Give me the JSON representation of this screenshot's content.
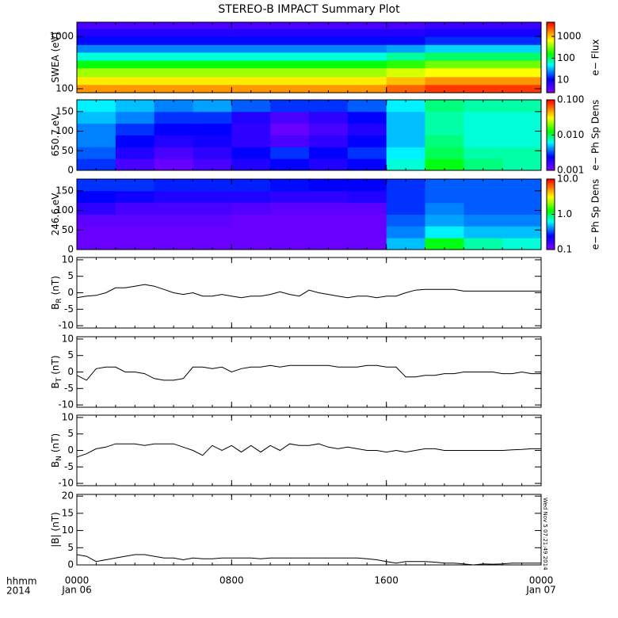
{
  "title": "STEREO-B IMPACT Summary Plot",
  "x_axis_labels": [
    "hhmm",
    "2014"
  ],
  "timestamp": "Wed Nov 5 07:21:49 2014",
  "chart_data": [
    {
      "type": "heatmap",
      "ylabel": "SWEA (eV)",
      "colorbar_label": "e− Flux",
      "colormap": "rainbow",
      "xlim": [
        0,
        24
      ],
      "ylim": [
        84,
        1880
      ],
      "ylog": true,
      "yticks": [
        100,
        1000
      ],
      "zlim": [
        2.6,
        4500
      ],
      "zlog": true,
      "zticks": [
        10,
        100,
        1000
      ],
      "x_bins": [
        0,
        2,
        4,
        6,
        8,
        10,
        12,
        14,
        16,
        18,
        20,
        22,
        24
      ],
      "y_bins": [
        84,
        120,
        170,
        250,
        350,
        500,
        700,
        1000,
        1400,
        1880
      ],
      "z": [
        [
          1500,
          1500,
          1500,
          1500,
          1500,
          1500,
          1500,
          1500,
          2200,
          3000,
          3000,
          3000
        ],
        [
          800,
          800,
          800,
          800,
          800,
          800,
          800,
          800,
          1100,
          1500,
          1500,
          1500
        ],
        [
          400,
          400,
          400,
          400,
          400,
          400,
          400,
          400,
          550,
          700,
          700,
          700
        ],
        [
          150,
          150,
          150,
          150,
          150,
          150,
          150,
          150,
          200,
          300,
          300,
          300
        ],
        [
          60,
          60,
          60,
          60,
          60,
          60,
          60,
          60,
          80,
          100,
          100,
          100
        ],
        [
          25,
          25,
          25,
          25,
          25,
          25,
          25,
          25,
          30,
          40,
          40,
          40
        ],
        [
          12,
          12,
          12,
          12,
          12,
          12,
          12,
          12,
          12,
          15,
          15,
          15
        ],
        [
          8,
          8,
          8,
          8,
          8,
          8,
          8,
          8,
          8,
          9,
          9,
          9
        ],
        [
          5,
          5,
          5,
          5,
          5,
          5,
          5,
          5,
          5,
          6,
          6,
          6
        ]
      ]
    },
    {
      "type": "heatmap",
      "ylabel": "650.7 eV",
      "colorbar_label": "e− Ph Sp Dens",
      "colormap": "rainbow",
      "xlim": [
        0,
        24
      ],
      "ylim": [
        0,
        180
      ],
      "yticks": [
        0,
        50,
        100,
        150
      ],
      "zlim": [
        0.001,
        0.1
      ],
      "zlog": true,
      "zticks": [
        0.001,
        {
          "value": 0.01,
          "label": "0.010"
        },
        {
          "value": 0.1,
          "label": "0.100"
        }
      ],
      "x_bins": [
        0,
        2,
        4,
        6,
        8,
        10,
        12,
        14,
        16,
        18,
        20,
        22,
        24
      ],
      "y_bins": [
        0,
        30,
        60,
        90,
        120,
        150,
        180
      ],
      "z": [
        [
          0.003,
          0.0015,
          0.0012,
          0.0015,
          0.002,
          0.0025,
          0.002,
          0.0025,
          0.007,
          0.012,
          0.009,
          0.008
        ],
        [
          0.0035,
          0.002,
          0.0015,
          0.0018,
          0.0025,
          0.003,
          0.0025,
          0.003,
          0.006,
          0.01,
          0.008,
          0.008
        ],
        [
          0.004,
          0.0025,
          0.002,
          0.0022,
          0.0018,
          0.0015,
          0.0018,
          0.0025,
          0.005,
          0.009,
          0.007,
          0.007
        ],
        [
          0.004,
          0.003,
          0.0025,
          0.0025,
          0.0018,
          0.0012,
          0.0015,
          0.002,
          0.005,
          0.008,
          0.007,
          0.007
        ],
        [
          0.005,
          0.004,
          0.003,
          0.003,
          0.002,
          0.0015,
          0.0018,
          0.0025,
          0.005,
          0.008,
          0.007,
          0.007
        ],
        [
          0.006,
          0.005,
          0.004,
          0.0045,
          0.0035,
          0.003,
          0.003,
          0.0035,
          0.006,
          0.009,
          0.008,
          0.008
        ]
      ]
    },
    {
      "type": "heatmap",
      "ylabel": "246.6 eV",
      "colorbar_label": "e− Ph Sp Dens",
      "colormap": "rainbow",
      "xlim": [
        0,
        24
      ],
      "ylim": [
        0,
        180
      ],
      "yticks": [
        0,
        50,
        100,
        150
      ],
      "zlim": [
        0.1,
        10
      ],
      "zlog": true,
      "zticks": [
        0.1,
        {
          "value": 1,
          "label": "1.0"
        },
        {
          "value": 10,
          "label": "10.0"
        }
      ],
      "x_bins": [
        0,
        2,
        4,
        6,
        8,
        10,
        12,
        14,
        16,
        18,
        20,
        22,
        24
      ],
      "y_bins": [
        0,
        30,
        60,
        90,
        120,
        150,
        180
      ],
      "z": [
        [
          0.12,
          0.12,
          0.12,
          0.12,
          0.12,
          0.12,
          0.12,
          0.12,
          0.5,
          1.2,
          0.8,
          0.7
        ],
        [
          0.12,
          0.12,
          0.12,
          0.12,
          0.12,
          0.12,
          0.12,
          0.12,
          0.4,
          0.6,
          0.5,
          0.5
        ],
        [
          0.13,
          0.13,
          0.13,
          0.13,
          0.12,
          0.12,
          0.12,
          0.12,
          0.35,
          0.45,
          0.4,
          0.4
        ],
        [
          0.18,
          0.15,
          0.15,
          0.15,
          0.14,
          0.13,
          0.13,
          0.13,
          0.3,
          0.4,
          0.35,
          0.35
        ],
        [
          0.25,
          0.22,
          0.2,
          0.2,
          0.2,
          0.18,
          0.18,
          0.2,
          0.3,
          0.35,
          0.35,
          0.35
        ],
        [
          0.3,
          0.3,
          0.28,
          0.28,
          0.28,
          0.26,
          0.25,
          0.25,
          0.3,
          0.35,
          0.35,
          0.35
        ]
      ]
    },
    {
      "type": "line",
      "ylabel": "B",
      "ylabel_sub": "R",
      "ylabel_unit": "(nT)",
      "color": "#000000",
      "xlim": [
        0,
        24
      ],
      "ylim": [
        -10.7,
        10.7
      ],
      "yticks": [
        -10,
        -5,
        0,
        5,
        10
      ],
      "x": [
        0,
        0.5,
        1,
        1.5,
        2,
        2.5,
        3,
        3.5,
        4,
        4.5,
        5,
        5.5,
        6,
        6.5,
        7,
        7.5,
        8,
        8.5,
        9,
        9.5,
        10,
        10.5,
        11,
        11.5,
        12,
        12.5,
        13,
        13.5,
        14,
        14.5,
        15,
        15.5,
        16,
        16.5,
        17,
        17.5,
        18,
        18.5,
        19,
        19.5,
        20,
        20.5,
        21,
        21.5,
        22,
        22.5,
        23,
        23.5,
        24
      ],
      "values": [
        -1.5,
        -1,
        -0.8,
        0,
        1.5,
        1.5,
        2,
        2.5,
        2,
        1,
        0,
        -0.5,
        0,
        -1,
        -1,
        -0.5,
        -1,
        -1.5,
        -1,
        -1,
        -0.5,
        0.3,
        -0.5,
        -1,
        0.8,
        0,
        -0.5,
        -1,
        -1.5,
        -1,
        -1,
        -1.5,
        -1,
        -1,
        0,
        0.8,
        1,
        1,
        1,
        1,
        0.5,
        0.5,
        0.5,
        0.5,
        0.5,
        0.5,
        0.5,
        0.5,
        0.5
      ]
    },
    {
      "type": "line",
      "ylabel": "B",
      "ylabel_sub": "T",
      "ylabel_unit": "(nT)",
      "color": "#000000",
      "xlim": [
        0,
        24
      ],
      "ylim": [
        -10.7,
        10.7
      ],
      "yticks": [
        -10,
        -5,
        0,
        5,
        10
      ],
      "x": [
        0,
        0.5,
        1,
        1.5,
        2,
        2.5,
        3,
        3.5,
        4,
        4.5,
        5,
        5.5,
        6,
        6.5,
        7,
        7.5,
        8,
        8.5,
        9,
        9.5,
        10,
        10.5,
        11,
        11.5,
        12,
        12.5,
        13,
        13.5,
        14,
        14.5,
        15,
        15.5,
        16,
        16.5,
        17,
        17.5,
        18,
        18.5,
        19,
        19.5,
        20,
        20.5,
        21,
        21.5,
        22,
        22.5,
        23,
        23.5,
        24
      ],
      "values": [
        -1,
        -2.5,
        1,
        1.5,
        1.5,
        0,
        0,
        -0.5,
        -2,
        -2.5,
        -2.5,
        -2,
        1.5,
        1.5,
        1,
        1.5,
        0,
        1,
        1.5,
        1.5,
        2,
        1.5,
        2,
        2,
        2,
        2,
        2,
        1.5,
        1.5,
        1.5,
        2,
        2,
        1.5,
        1.5,
        -1.5,
        -1.5,
        -1,
        -1,
        -0.5,
        -0.5,
        0,
        0,
        0,
        0,
        -0.5,
        -0.5,
        0,
        -0.5,
        -0.5
      ]
    },
    {
      "type": "line",
      "ylabel": "B",
      "ylabel_sub": "N",
      "ylabel_unit": "(nT)",
      "color": "#000000",
      "xlim": [
        0,
        24
      ],
      "ylim": [
        -10.7,
        10.7
      ],
      "yticks": [
        -10,
        -5,
        0,
        5,
        10
      ],
      "x": [
        0,
        0.5,
        1,
        1.5,
        2,
        2.5,
        3,
        3.5,
        4,
        4.5,
        5,
        5.5,
        6,
        6.5,
        7,
        7.5,
        8,
        8.5,
        9,
        9.5,
        10,
        10.5,
        11,
        11.5,
        12,
        12.5,
        13,
        13.5,
        14,
        14.5,
        15,
        15.5,
        16,
        16.5,
        17,
        17.5,
        18,
        18.5,
        19,
        19.5,
        20,
        20.5,
        21,
        21.5,
        22,
        22.5,
        23,
        23.5,
        24
      ],
      "values": [
        -2,
        -1,
        0.5,
        1,
        2,
        2,
        2,
        1.5,
        2,
        2,
        2,
        1,
        0,
        -1.5,
        1.5,
        0,
        1.5,
        -0.5,
        1.5,
        -0.5,
        1.5,
        0,
        2,
        1.5,
        1.5,
        2,
        1,
        0.5,
        1,
        0.5,
        0,
        0,
        -0.5,
        0,
        -0.5,
        0,
        0.5,
        0.5,
        0,
        0,
        0,
        0,
        0,
        0,
        0,
        0.2,
        0.3,
        0.5,
        0.5
      ]
    },
    {
      "type": "line",
      "ylabel": "|B| (nT)",
      "color": "#000000",
      "xlim": [
        0,
        24
      ],
      "ylim": [
        0,
        20.5
      ],
      "yticks": [
        0,
        5,
        10,
        15,
        20
      ],
      "xticks": [
        {
          "value": 0,
          "label": "0000"
        },
        {
          "value": 8,
          "label": "0800"
        },
        {
          "value": 16,
          "label": "1600"
        },
        {
          "value": 24,
          "label": "0000"
        }
      ],
      "xdates": [
        {
          "value": 0,
          "label": "Jan 06"
        },
        {
          "value": 24,
          "label": "Jan 07"
        }
      ],
      "x": [
        0,
        0.5,
        1,
        1.5,
        2,
        2.5,
        3,
        3.5,
        4,
        4.5,
        5,
        5.5,
        6,
        6.5,
        7,
        7.5,
        8,
        8.5,
        9,
        9.5,
        10,
        10.5,
        11,
        11.5,
        12,
        12.5,
        13,
        13.5,
        14,
        14.5,
        15,
        15.5,
        16,
        16.5,
        17,
        17.5,
        18,
        18.5,
        19,
        19.5,
        20,
        20.5,
        21,
        21.5,
        22,
        22.5,
        23,
        23.5,
        24
      ],
      "values": [
        3,
        2.5,
        1,
        1.5,
        2,
        2.5,
        3,
        3,
        2.5,
        2,
        2,
        1.5,
        2,
        1.8,
        1.8,
        2,
        2,
        2,
        2,
        1.8,
        2,
        2,
        2,
        2,
        2,
        2,
        2,
        2,
        2,
        2,
        1.8,
        1.5,
        1,
        0.5,
        1,
        1,
        1,
        0.8,
        0.5,
        0.5,
        0.3,
        0,
        0.3,
        0.2,
        0.3,
        0.5,
        0.5,
        0.5,
        0.5
      ]
    }
  ]
}
